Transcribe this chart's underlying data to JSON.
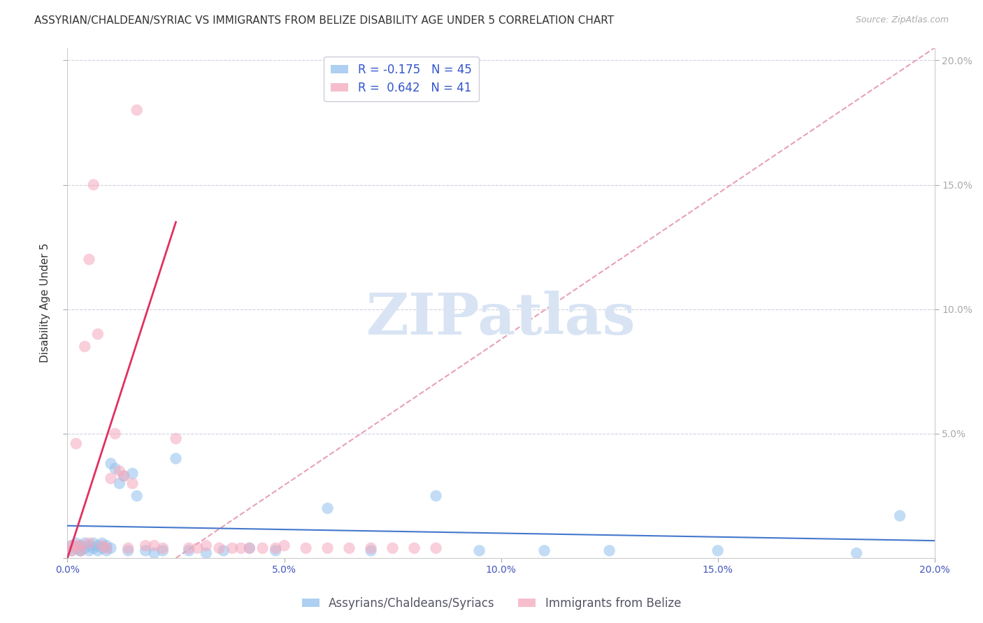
{
  "title": "ASSYRIAN/CHALDEAN/SYRIAC VS IMMIGRANTS FROM BELIZE DISABILITY AGE UNDER 5 CORRELATION CHART",
  "source": "Source: ZipAtlas.com",
  "ylabel": "Disability Age Under 5",
  "xlim": [
    0.0,
    0.2
  ],
  "ylim": [
    0.0,
    0.205
  ],
  "xticks": [
    0.0,
    0.05,
    0.1,
    0.15,
    0.2
  ],
  "yticks": [
    0.0,
    0.05,
    0.1,
    0.15,
    0.2
  ],
  "xtick_labels": [
    "0.0%",
    "5.0%",
    "10.0%",
    "15.0%",
    "20.0%"
  ],
  "right_ytick_labels": [
    "5.0%",
    "10.0%",
    "15.0%",
    "20.0%"
  ],
  "blue_color": "#92C0ED",
  "pink_color": "#F4A8BC",
  "blue_line_color": "#4477CC",
  "pink_line_color": "#E03060",
  "dashed_line_color": "#E8A0B8",
  "legend_blue_R": "-0.175",
  "legend_blue_N": "45",
  "legend_pink_R": "0.642",
  "legend_pink_N": "41",
  "legend_label_blue": "Assyrians/Chaldeans/Syriacs",
  "legend_label_pink": "Immigrants from Belize",
  "watermark": "ZIPatlas",
  "watermark_color": "#D8E4F4",
  "blue_scatter_x": [
    0.001,
    0.001,
    0.002,
    0.002,
    0.003,
    0.003,
    0.003,
    0.004,
    0.004,
    0.005,
    0.005,
    0.006,
    0.006,
    0.007,
    0.007,
    0.008,
    0.008,
    0.009,
    0.009,
    0.01,
    0.01,
    0.011,
    0.012,
    0.013,
    0.014,
    0.015,
    0.016,
    0.018,
    0.02,
    0.022,
    0.025,
    0.028,
    0.032,
    0.036,
    0.042,
    0.048,
    0.06,
    0.07,
    0.085,
    0.095,
    0.11,
    0.125,
    0.15,
    0.182,
    0.192
  ],
  "blue_scatter_y": [
    0.005,
    0.003,
    0.004,
    0.006,
    0.003,
    0.005,
    0.003,
    0.004,
    0.006,
    0.003,
    0.005,
    0.004,
    0.006,
    0.003,
    0.005,
    0.004,
    0.006,
    0.005,
    0.003,
    0.038,
    0.004,
    0.036,
    0.03,
    0.033,
    0.003,
    0.034,
    0.025,
    0.003,
    0.002,
    0.003,
    0.04,
    0.003,
    0.002,
    0.003,
    0.004,
    0.003,
    0.02,
    0.003,
    0.025,
    0.003,
    0.003,
    0.003,
    0.003,
    0.002,
    0.017
  ],
  "pink_scatter_x": [
    0.001,
    0.001,
    0.002,
    0.002,
    0.003,
    0.003,
    0.004,
    0.005,
    0.005,
    0.006,
    0.007,
    0.008,
    0.009,
    0.01,
    0.011,
    0.012,
    0.013,
    0.014,
    0.015,
    0.016,
    0.018,
    0.02,
    0.022,
    0.025,
    0.028,
    0.03,
    0.032,
    0.035,
    0.038,
    0.04,
    0.042,
    0.045,
    0.048,
    0.05,
    0.055,
    0.06,
    0.065,
    0.07,
    0.075,
    0.08,
    0.085
  ],
  "pink_scatter_y": [
    0.005,
    0.003,
    0.046,
    0.005,
    0.003,
    0.005,
    0.085,
    0.006,
    0.12,
    0.15,
    0.09,
    0.005,
    0.004,
    0.032,
    0.05,
    0.035,
    0.033,
    0.004,
    0.03,
    0.18,
    0.005,
    0.005,
    0.004,
    0.048,
    0.004,
    0.004,
    0.005,
    0.004,
    0.004,
    0.004,
    0.004,
    0.004,
    0.004,
    0.005,
    0.004,
    0.004,
    0.004,
    0.004,
    0.004,
    0.004,
    0.004
  ],
  "title_fontsize": 11,
  "axis_label_fontsize": 11,
  "tick_fontsize": 10,
  "legend_fontsize": 12
}
